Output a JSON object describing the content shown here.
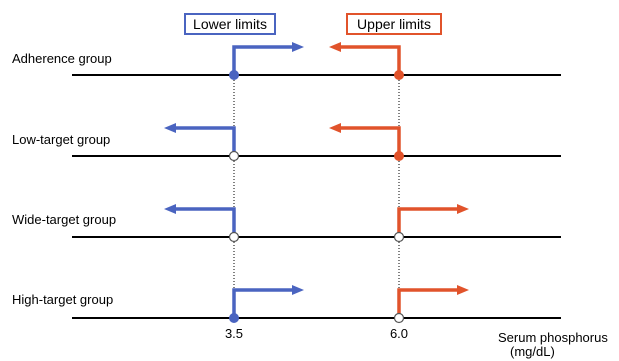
{
  "legend": {
    "lower_label": "Lower limits",
    "upper_label": "Upper limits",
    "lower_color": "#4a64c0",
    "upper_color": "#e1532b"
  },
  "groups": [
    {
      "name": "Adherence group",
      "lower": {
        "dir": "right",
        "point": "filled"
      },
      "upper": {
        "dir": "left",
        "point": "filled"
      }
    },
    {
      "name": "Low-target group",
      "lower": {
        "dir": "left",
        "point": "open"
      },
      "upper": {
        "dir": "left",
        "point": "filled"
      }
    },
    {
      "name": "Wide-target group",
      "lower": {
        "dir": "left",
        "point": "open"
      },
      "upper": {
        "dir": "right",
        "point": "open"
      }
    },
    {
      "name": "High-target group",
      "lower": {
        "dir": "right",
        "point": "filled"
      },
      "upper": {
        "dir": "right",
        "point": "open"
      }
    }
  ],
  "axis": {
    "ticks": [
      "3.5",
      "6.0"
    ],
    "label_line1": "Serum phosphorus",
    "label_line2": "(mg/dL)"
  }
}
